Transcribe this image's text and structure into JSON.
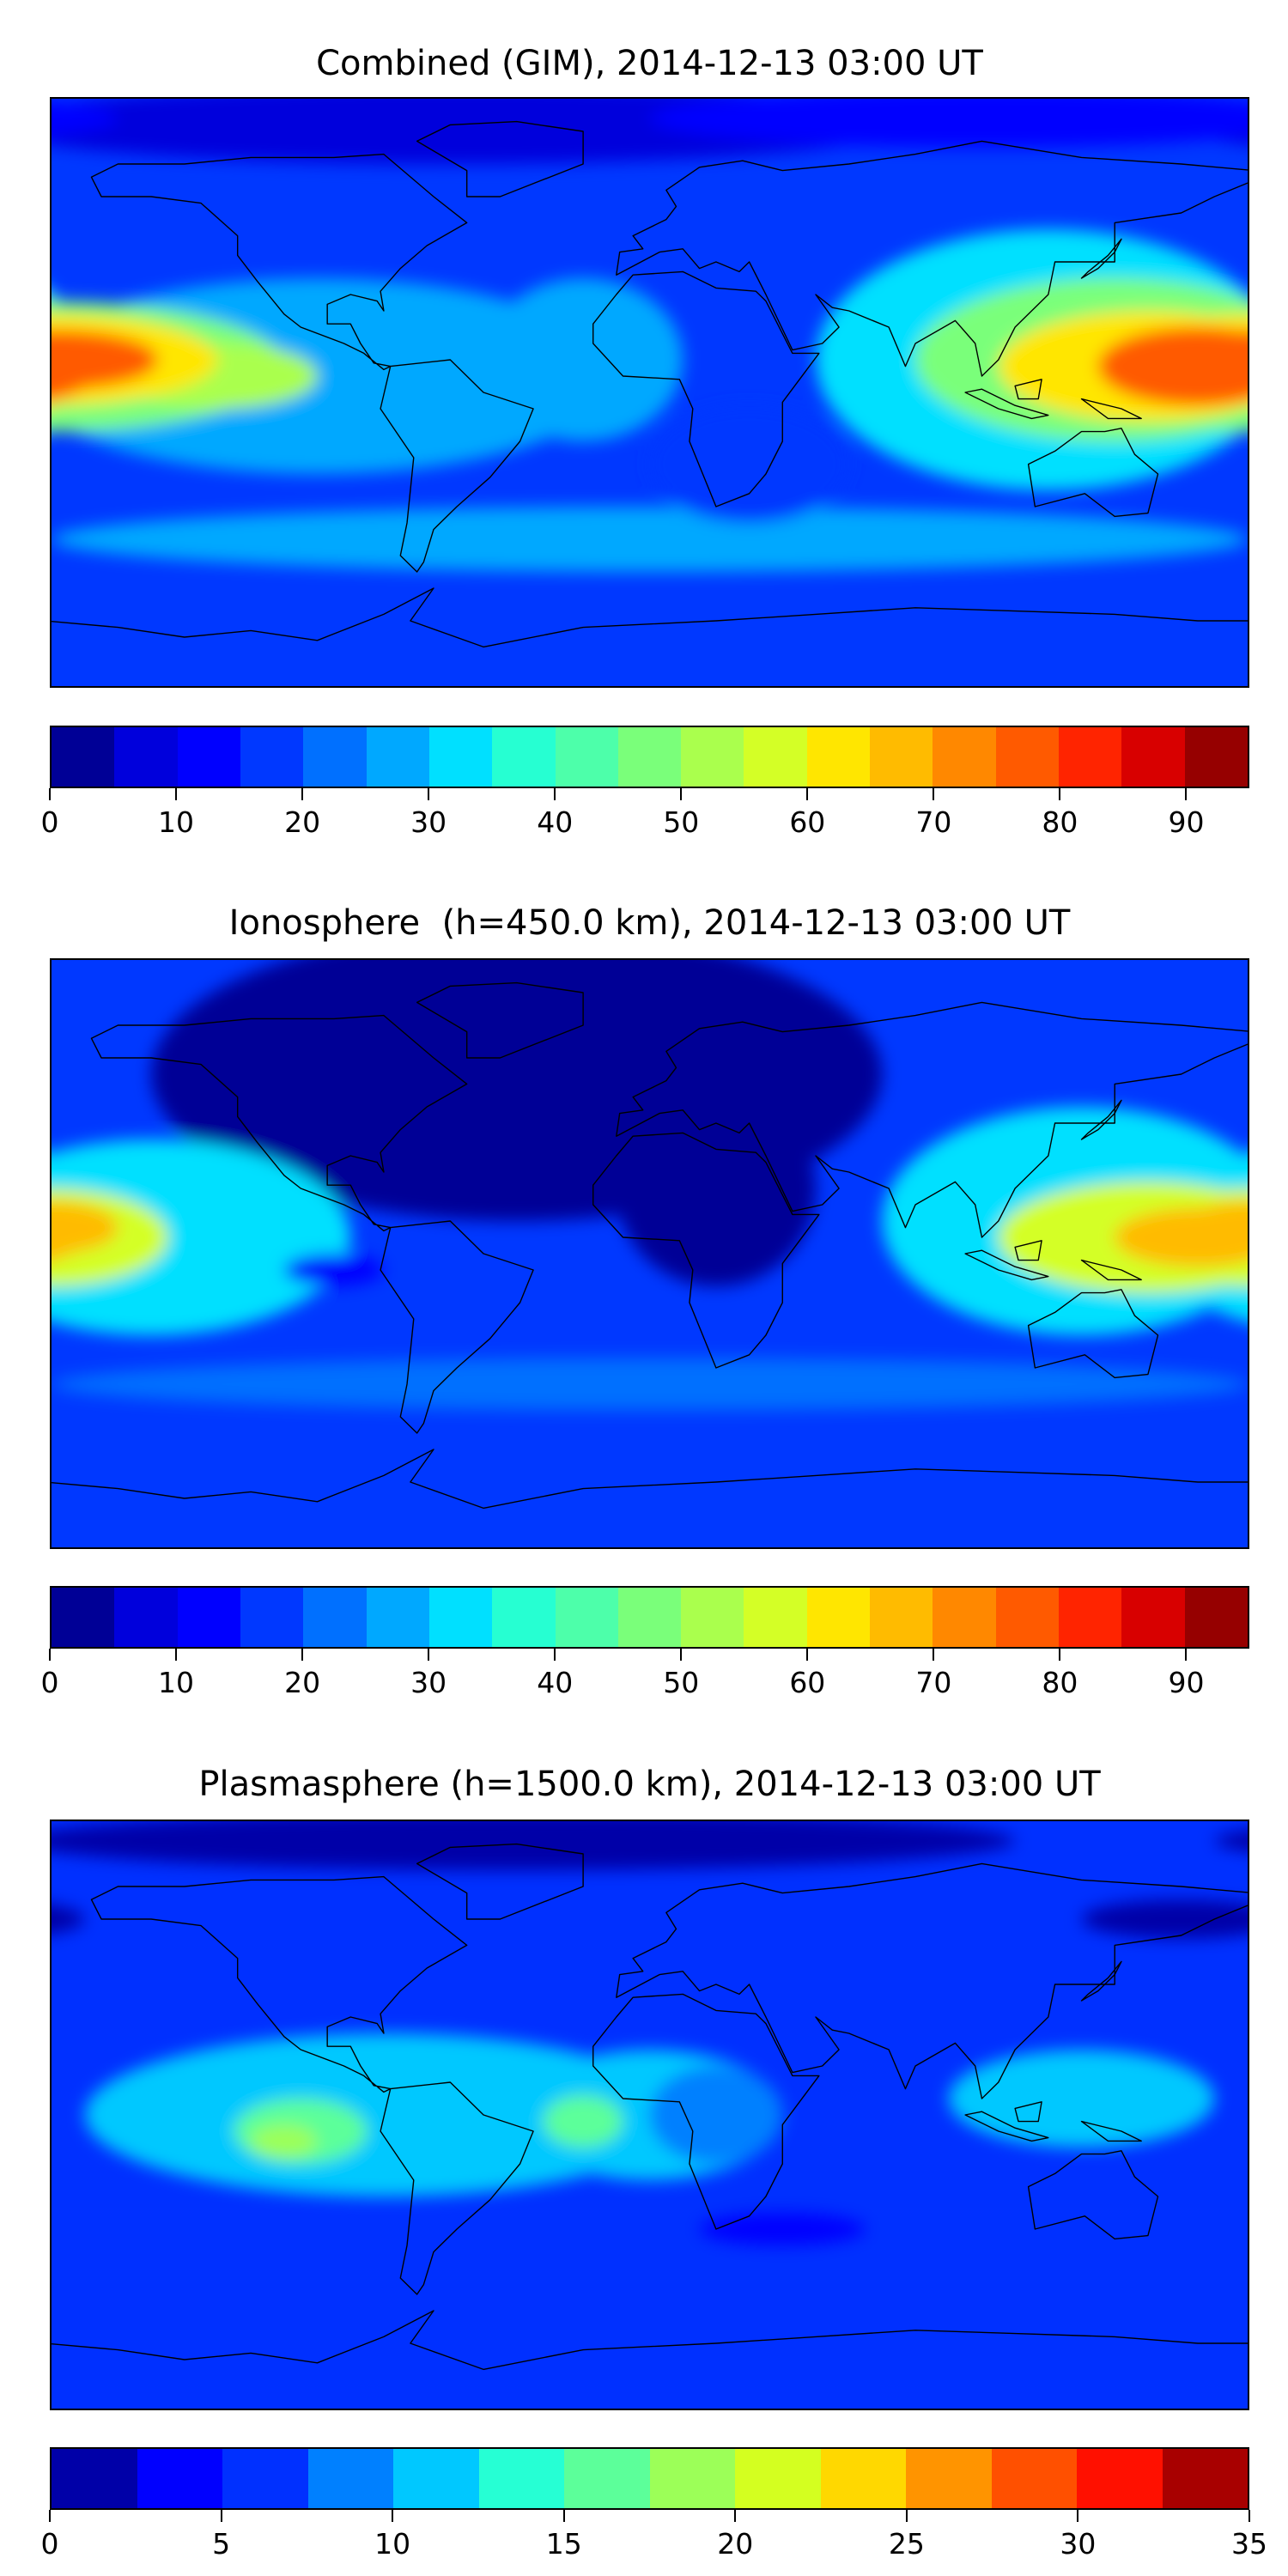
{
  "chart_data": [
    {
      "type": "heatmap",
      "title": "Combined (GIM), 2014-12-13 03:00 UT",
      "xlabel": "",
      "ylabel": "",
      "projection": "equirectangular, lon -180..180, lat -90..90, with coastlines",
      "colorbar": {
        "range": [
          0,
          95
        ],
        "step": 5,
        "ticks": [
          "0",
          "10",
          "20",
          "30",
          "40",
          "50",
          "60",
          "70",
          "80",
          "90"
        ],
        "tick_values": [
          0,
          10,
          20,
          30,
          40,
          50,
          60,
          70,
          80,
          90
        ],
        "colors": [
          "#000096",
          "#0000dc",
          "#0000ff",
          "#0038ff",
          "#0070ff",
          "#00a8ff",
          "#00e0ff",
          "#26ffd2",
          "#4dffaa",
          "#7aff7a",
          "#aaff4d",
          "#d4ff26",
          "#ffe600",
          "#ffbb00",
          "#ff8800",
          "#ff5a00",
          "#ff2400",
          "#d80000",
          "#960000"
        ]
      },
      "background_value": 18,
      "features": [
        {
          "lon": -60,
          "lat": 82,
          "rlon": 140,
          "rlat": 12,
          "value": 7
        },
        {
          "lon": 100,
          "lat": 84,
          "rlon": 100,
          "rlat": 9,
          "value": 12
        },
        {
          "lon": 0,
          "lat": -45,
          "rlon": 180,
          "rlat": 10,
          "value": 26
        },
        {
          "lon": -100,
          "lat": 5,
          "rlon": 90,
          "rlat": 30,
          "value": 27
        },
        {
          "lon": -20,
          "lat": 10,
          "rlon": 30,
          "rlat": 25,
          "value": 27
        },
        {
          "lon": 120,
          "lat": 10,
          "rlon": 70,
          "rlat": 40,
          "value": 32
        },
        {
          "lon": 30,
          "lat": -22,
          "rlon": 30,
          "rlat": 18,
          "value": 17
        },
        {
          "lon": -180,
          "lat": 8,
          "rlon": 70,
          "rlat": 20,
          "value": 45
        },
        {
          "lon": -130,
          "lat": 5,
          "rlon": 30,
          "rlat": 10,
          "value": 50
        },
        {
          "lon": 140,
          "lat": 10,
          "rlon": 60,
          "rlat": 25,
          "value": 45
        },
        {
          "lon": -180,
          "lat": 10,
          "rlon": 50,
          "rlat": 14,
          "value": 62
        },
        {
          "lon": 150,
          "lat": 8,
          "rlon": 45,
          "rlat": 17,
          "value": 62
        },
        {
          "lon": -178,
          "lat": 10,
          "rlon": 30,
          "rlat": 9,
          "value": 77
        },
        {
          "lon": 165,
          "lat": 8,
          "rlon": 30,
          "rlat": 12,
          "value": 78
        }
      ]
    },
    {
      "type": "heatmap",
      "title": "Ionosphere  (h=450.0 km), 2014-12-13 03:00 UT",
      "xlabel": "",
      "ylabel": "",
      "projection": "equirectangular, lon -180..180, lat -90..90, with coastlines",
      "colorbar": {
        "range": [
          0,
          95
        ],
        "step": 5,
        "ticks": [
          "0",
          "10",
          "20",
          "30",
          "40",
          "50",
          "60",
          "70",
          "80",
          "90"
        ],
        "tick_values": [
          0,
          10,
          20,
          30,
          40,
          50,
          60,
          70,
          80,
          90
        ],
        "colors": [
          "#000096",
          "#0000dc",
          "#0000ff",
          "#0038ff",
          "#0070ff",
          "#00a8ff",
          "#00e0ff",
          "#26ffd2",
          "#4dffaa",
          "#7aff7a",
          "#aaff4d",
          "#d4ff26",
          "#ffe600",
          "#ffbb00",
          "#ff8800",
          "#ff5a00",
          "#ff2400",
          "#d80000",
          "#960000"
        ]
      },
      "background_value": 18,
      "features": [
        {
          "lon": -40,
          "lat": 55,
          "rlon": 110,
          "rlat": 45,
          "value": 3
        },
        {
          "lon": 20,
          "lat": 20,
          "rlon": 30,
          "rlat": 30,
          "value": 4
        },
        {
          "lon": 0,
          "lat": -40,
          "rlon": 180,
          "rlat": 8,
          "value": 22
        },
        {
          "lon": -150,
          "lat": 5,
          "rlon": 60,
          "rlat": 30,
          "value": 30
        },
        {
          "lon": 130,
          "lat": 10,
          "rlon": 60,
          "rlat": 35,
          "value": 32
        },
        {
          "lon": -95,
          "lat": -5,
          "rlon": 15,
          "rlat": 5,
          "value": 12
        },
        {
          "lon": -180,
          "lat": 5,
          "rlon": 35,
          "rlat": 15,
          "value": 55
        },
        {
          "lon": 150,
          "lat": 5,
          "rlon": 45,
          "rlat": 17,
          "value": 55
        },
        {
          "lon": -180,
          "lat": 8,
          "rlon": 20,
          "rlat": 8,
          "value": 67
        },
        {
          "lon": 165,
          "lat": 5,
          "rlon": 25,
          "rlat": 9,
          "value": 67
        }
      ]
    },
    {
      "type": "heatmap",
      "title": "Plasmasphere (h=1500.0 km), 2014-12-13 03:00 UT",
      "xlabel": "",
      "ylabel": "",
      "projection": "equirectangular, lon -180..180, lat -90..90, with coastlines",
      "colorbar": {
        "range": [
          0,
          35
        ],
        "step": 2.5,
        "ticks": [
          "0",
          "5",
          "10",
          "15",
          "20",
          "25",
          "30",
          "35"
        ],
        "tick_values": [
          0,
          5,
          10,
          15,
          20,
          25,
          30,
          35
        ],
        "colors": [
          "#0000a8",
          "#0000ff",
          "#0030ff",
          "#0080ff",
          "#00c8ff",
          "#26ffd4",
          "#5cff9a",
          "#9cff58",
          "#d4ff20",
          "#ffd800",
          "#ff9400",
          "#ff5000",
          "#ff1000",
          "#a80000"
        ]
      },
      "background_value": 6,
      "features": [
        {
          "lon": -40,
          "lat": 84,
          "rlon": 150,
          "rlat": 9,
          "value": 2
        },
        {
          "lon": 160,
          "lat": 60,
          "rlon": 30,
          "rlat": 6,
          "value": 2
        },
        {
          "lon": -80,
          "lat": 0,
          "rlon": 90,
          "rlat": 25,
          "value": 11
        },
        {
          "lon": 0,
          "lat": 0,
          "rlon": 40,
          "rlat": 20,
          "value": 11
        },
        {
          "lon": 130,
          "lat": 5,
          "rlon": 40,
          "rlat": 15,
          "value": 11
        },
        {
          "lon": 20,
          "lat": 0,
          "rlon": 20,
          "rlat": 15,
          "value": 9
        },
        {
          "lon": -105,
          "lat": -5,
          "rlon": 20,
          "rlat": 10,
          "value": 16
        },
        {
          "lon": -20,
          "lat": -2,
          "rlon": 12,
          "rlat": 8,
          "value": 16
        },
        {
          "lon": -110,
          "lat": -8,
          "rlon": 10,
          "rlat": 5,
          "value": 19
        },
        {
          "lon": 40,
          "lat": -35,
          "rlon": 25,
          "rlat": 5,
          "value": 3
        }
      ]
    }
  ]
}
